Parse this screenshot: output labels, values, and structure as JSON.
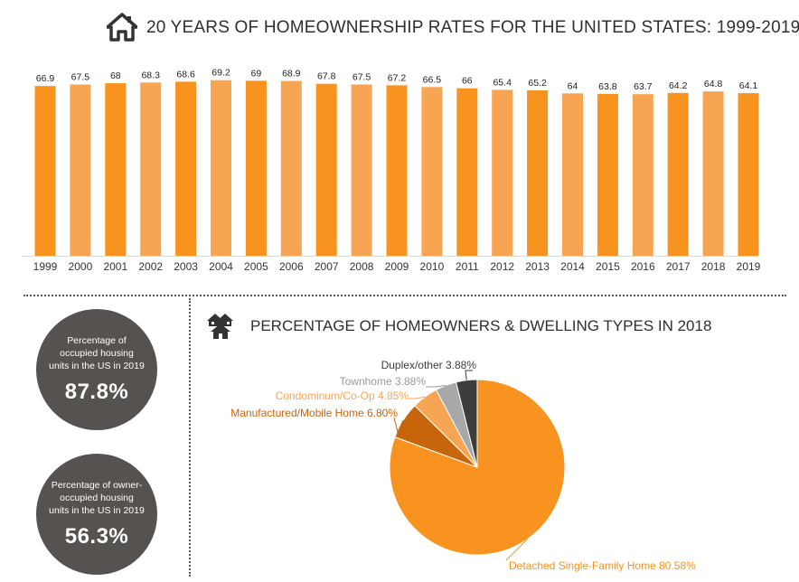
{
  "title": "20 YEARS OF HOMEOWNERSHIP RATES FOR THE UNITED STATES: 1999-2019",
  "pie_title": "PERCENTAGE OF HOMEOWNERS & DWELLING TYPES IN 2018",
  "stats": [
    {
      "text": "Percentage of occupied housing units in the US in 2019",
      "value": "87.8%"
    },
    {
      "text": "Percentage of owner-occupied housing units in the US in 2019",
      "value": "56.3%"
    }
  ],
  "colors": {
    "bar_dark": "#f7931e",
    "bar_light": "#f7a552",
    "circle": "#55524f",
    "pie_detached": "#f7931e",
    "pie_manufactured": "#c8650a",
    "pie_condo": "#f6a653",
    "pie_townhome": "#a8a8a8",
    "pie_duplex": "#3d3d3d"
  },
  "chart_data": [
    {
      "type": "bar",
      "title": "20 YEARS OF HOMEOWNERSHIP RATES FOR THE UNITED STATES: 1999-2019",
      "categories": [
        "1999",
        "2000",
        "2001",
        "2002",
        "2003",
        "2004",
        "2005",
        "2006",
        "2007",
        "2008",
        "2009",
        "2010",
        "2011",
        "2012",
        "2013",
        "2014",
        "2015",
        "2016",
        "2017",
        "2018",
        "2019"
      ],
      "values": [
        66.9,
        67.5,
        68,
        68.3,
        68.6,
        69.2,
        69,
        68.9,
        67.8,
        67.5,
        67.2,
        66.5,
        66,
        65.4,
        65.2,
        64,
        63.8,
        63.7,
        64.2,
        64.8,
        64.1
      ],
      "data_labels": [
        "66.9",
        "67.5",
        "68",
        "68.3",
        "68.6",
        "69.2",
        "69",
        "68.9",
        "67.8",
        "67.5",
        "67.2",
        "66.5",
        "66",
        "65.4",
        "65.2",
        "64",
        "63.8",
        "63.7",
        "64.2",
        "64.8",
        "64.1"
      ],
      "ylim": [
        0,
        70
      ],
      "grid": false
    },
    {
      "type": "pie",
      "title": "PERCENTAGE OF HOMEOWNERS & DWELLING TYPES IN 2018",
      "slices": [
        {
          "label": "Detached Single-Family Home 80.58%",
          "value": 80.58,
          "color": "#f7931e",
          "label_color": "#f7931e"
        },
        {
          "label": "Manufactured/Mobile Home 6.80%",
          "value": 6.8,
          "color": "#c8650a",
          "label_color": "#c8650a"
        },
        {
          "label": "Condominum/Co-Op 4.85%",
          "value": 4.85,
          "color": "#f6a653",
          "label_color": "#f6a653"
        },
        {
          "label": "Townhome 3.88%",
          "value": 3.88,
          "color": "#a8a8a8",
          "label_color": "#9a9a9a"
        },
        {
          "label": "Duplex/other 3.88%",
          "value": 3.88,
          "color": "#3d3d3d",
          "label_color": "#3d3d3d"
        }
      ]
    }
  ]
}
